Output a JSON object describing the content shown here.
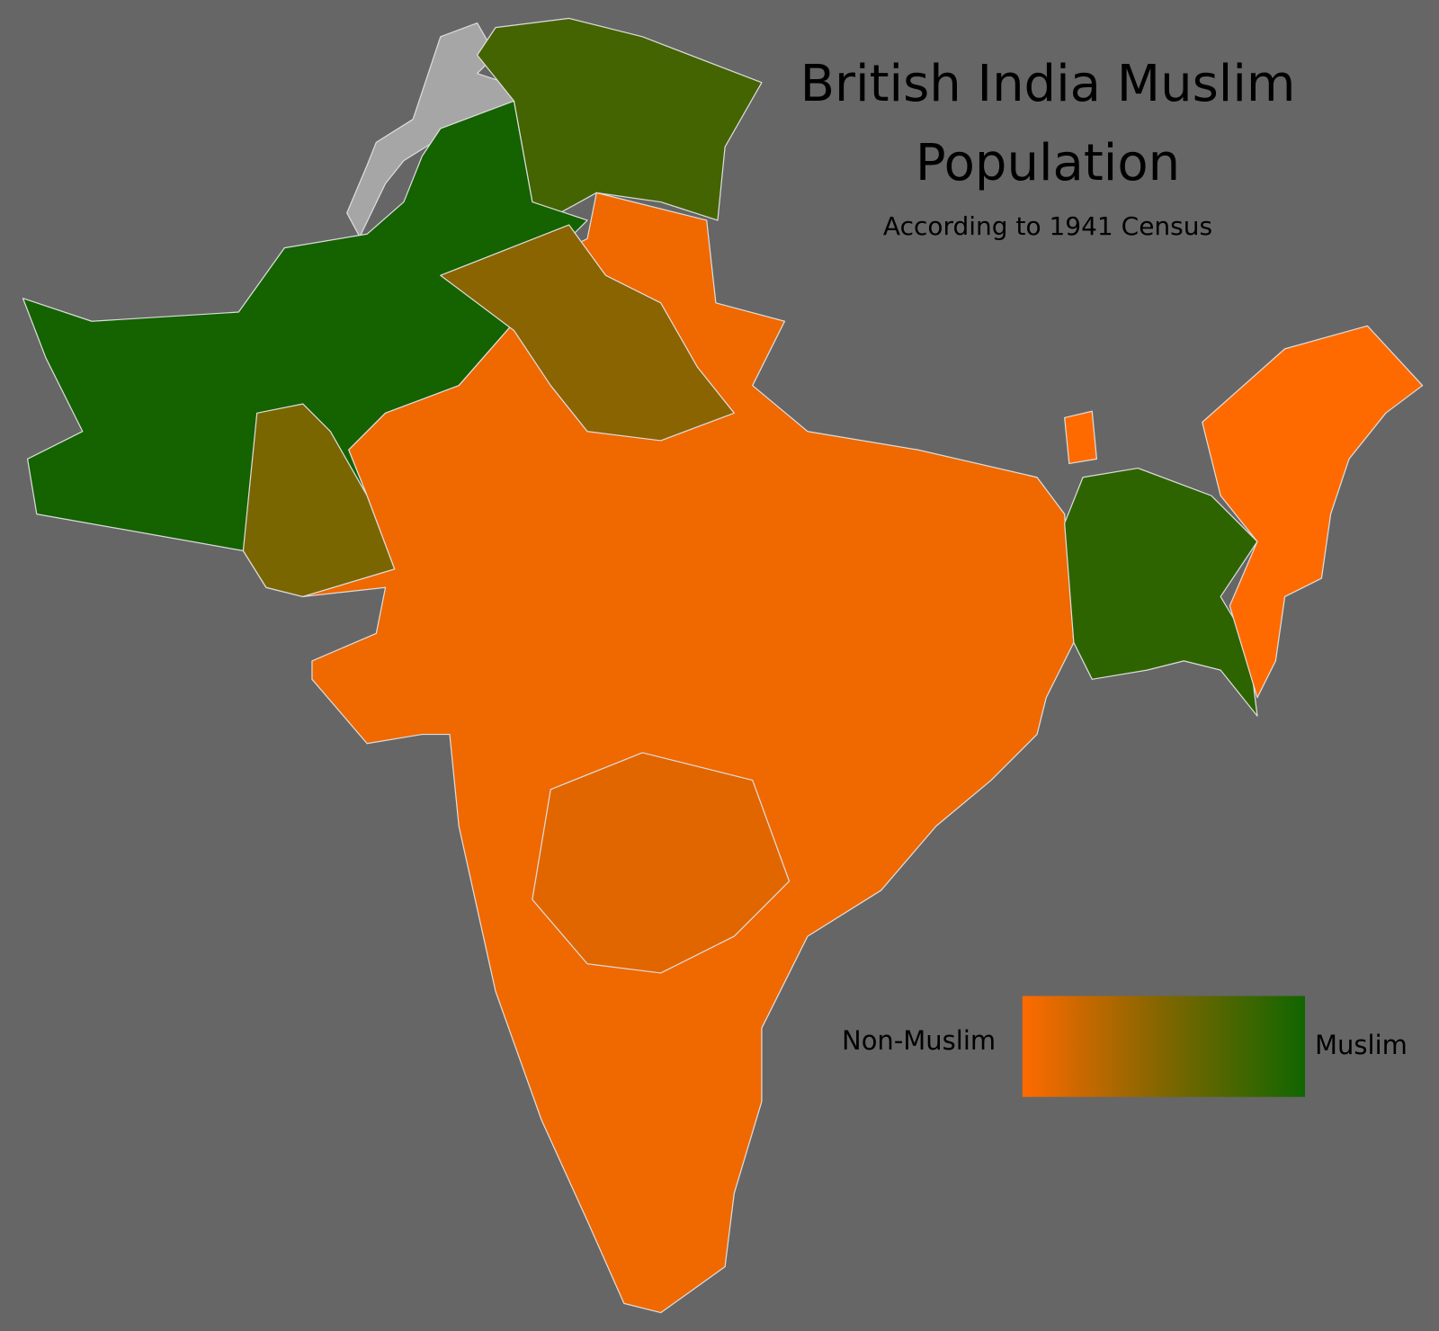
{
  "title": "British India Muslim Population",
  "subtitle": "According to 1941 Census",
  "legend": {
    "low_label": "Non-Muslim",
    "high_label": "Muslim",
    "low_color": "#ff6a00",
    "mid_color": "#806600",
    "high_color": "#116600"
  }
}
